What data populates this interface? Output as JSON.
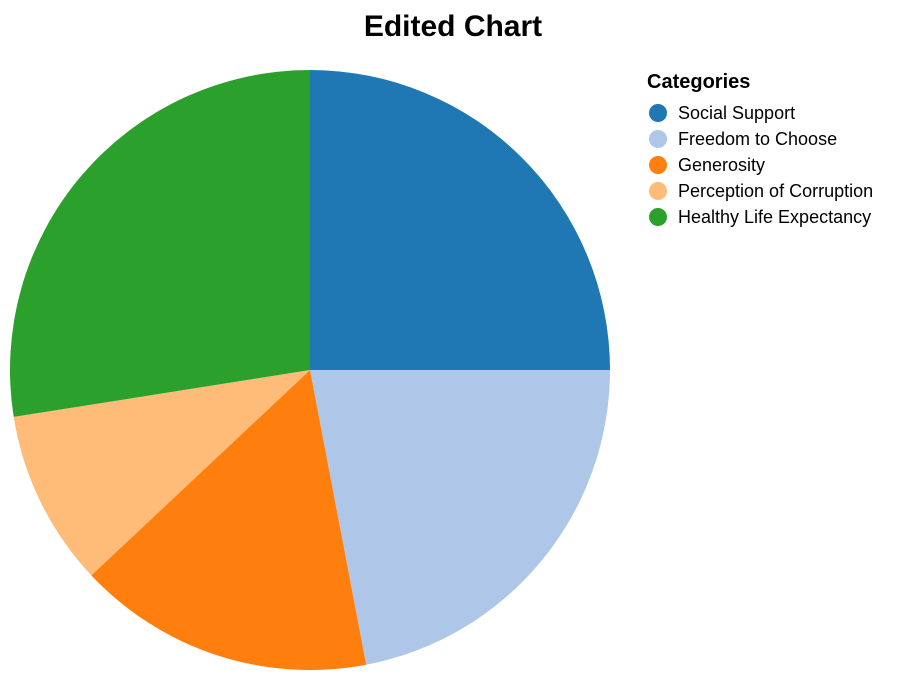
{
  "chart_data": {
    "type": "pie",
    "title": "Edited Chart",
    "legend": {
      "title": "Categories",
      "position": "top-right"
    },
    "categories": [
      "Social Support",
      "Freedom to Choose",
      "Generosity",
      "Perception of Corruption",
      "Healthy Life Expectancy"
    ],
    "values": [
      25.0,
      22.0,
      16.0,
      9.5,
      27.5
    ],
    "colors": [
      "#1f77b4",
      "#aec7e8",
      "#ff7f0e",
      "#ffbb78",
      "#2ca02c"
    ],
    "start_angle": "12 o'clock",
    "direction": "clockwise"
  }
}
